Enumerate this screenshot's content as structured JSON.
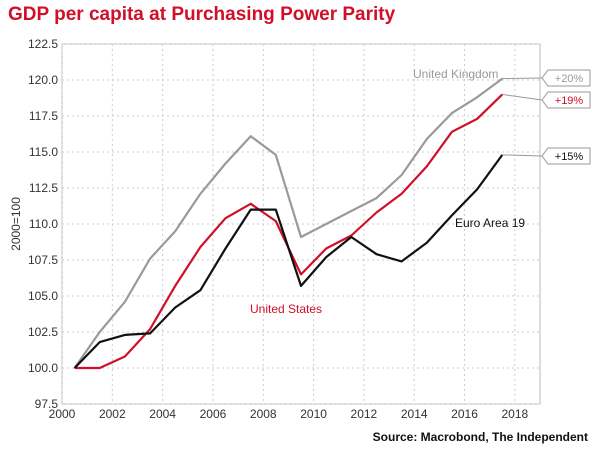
{
  "title": "GDP per capita at Purchasing Power Parity",
  "source": "Source: Macrobond, The Independent",
  "chart_data": {
    "type": "line",
    "title": "GDP per capita at Purchasing Power Parity",
    "xlabel": "",
    "ylabel": "2000=100",
    "xlim": [
      2000,
      2019
    ],
    "ylim": [
      97.5,
      122.5
    ],
    "x_ticks": [
      "2000",
      "2002",
      "2004",
      "2006",
      "2008",
      "2010",
      "2012",
      "2014",
      "2016",
      "2018"
    ],
    "y_ticks": [
      "97.5",
      "100.0",
      "102.5",
      "105.0",
      "107.5",
      "110.0",
      "112.5",
      "115.0",
      "117.5",
      "120.0",
      "122.5"
    ],
    "grid": true,
    "x": [
      2000.5,
      2001.5,
      2002.5,
      2003.5,
      2004.5,
      2005.5,
      2006.5,
      2007.5,
      2008.5,
      2009.5,
      2010.5,
      2011.5,
      2012.5,
      2013.5,
      2014.5,
      2015.5,
      2016.5,
      2017.5
    ],
    "series": [
      {
        "name": "United Kingdom",
        "color": "#9a9a9a",
        "values": [
          100.0,
          102.5,
          104.6,
          107.6,
          109.5,
          112.1,
          114.2,
          116.1,
          114.8,
          109.1,
          110.0,
          110.9,
          111.8,
          113.4,
          115.9,
          117.7,
          118.8,
          120.1
        ],
        "change_label": "+20%"
      },
      {
        "name": "United States",
        "color": "#d0102a",
        "values": [
          100.0,
          100.0,
          100.8,
          102.7,
          105.7,
          108.4,
          110.4,
          111.4,
          110.2,
          106.5,
          108.3,
          109.2,
          110.8,
          112.1,
          114.0,
          116.4,
          117.3,
          119.0
        ],
        "change_label": "+19%"
      },
      {
        "name": "Euro Area 19",
        "color": "#111111",
        "values": [
          100.0,
          101.8,
          102.3,
          102.4,
          104.2,
          105.4,
          108.3,
          111.0,
          111.0,
          105.7,
          107.7,
          109.1,
          107.9,
          107.4,
          108.7,
          110.6,
          112.4,
          114.8
        ],
        "change_label": "+15%"
      }
    ]
  }
}
